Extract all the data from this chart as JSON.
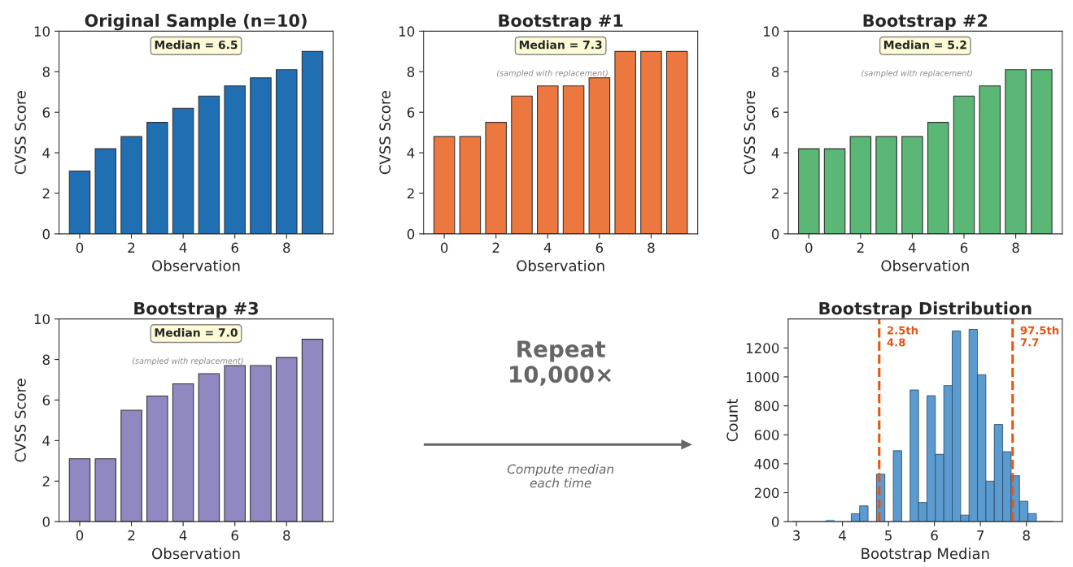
{
  "chart_data": [
    {
      "type": "bar",
      "title": "Original Sample (n=10)",
      "xlabel": "Observation",
      "ylabel": "CVSS Score",
      "x": [
        0,
        1,
        2,
        3,
        4,
        5,
        6,
        7,
        8,
        9
      ],
      "values": [
        3.1,
        4.2,
        4.8,
        5.5,
        6.2,
        6.8,
        7.3,
        7.7,
        8.1,
        9.0
      ],
      "color": "#1f6fb2",
      "xlim": [
        -0.8,
        9.8
      ],
      "xticks": [
        0,
        2,
        4,
        6,
        8
      ],
      "ylim": [
        0,
        10
      ],
      "yticks": [
        0,
        2,
        4,
        6,
        8,
        10
      ],
      "annotations": [
        "Median = 6.5"
      ]
    },
    {
      "type": "bar",
      "title": "Bootstrap #1",
      "xlabel": "Observation",
      "ylabel": "CVSS Score",
      "x": [
        0,
        1,
        2,
        3,
        4,
        5,
        6,
        7,
        8,
        9
      ],
      "values": [
        4.8,
        4.8,
        5.5,
        6.8,
        7.3,
        7.3,
        7.7,
        9.0,
        9.0,
        9.0
      ],
      "color": "#ed783f",
      "xlim": [
        -0.8,
        9.8
      ],
      "xticks": [
        0,
        2,
        4,
        6,
        8
      ],
      "ylim": [
        0,
        10
      ],
      "yticks": [
        0,
        2,
        4,
        6,
        8,
        10
      ],
      "annotations": [
        "Median = 7.3",
        "(sampled with replacement)"
      ]
    },
    {
      "type": "bar",
      "title": "Bootstrap #2",
      "xlabel": "Observation",
      "ylabel": "CVSS Score",
      "x": [
        0,
        1,
        2,
        3,
        4,
        5,
        6,
        7,
        8,
        9
      ],
      "values": [
        4.2,
        4.2,
        4.8,
        4.8,
        4.8,
        5.5,
        6.8,
        7.3,
        8.1,
        8.1
      ],
      "color": "#5bb776",
      "xlim": [
        -0.8,
        9.8
      ],
      "xticks": [
        0,
        2,
        4,
        6,
        8
      ],
      "ylim": [
        0,
        10
      ],
      "yticks": [
        0,
        2,
        4,
        6,
        8,
        10
      ],
      "annotations": [
        "Median = 5.2",
        "(sampled with replacement)"
      ]
    },
    {
      "type": "bar",
      "title": "Bootstrap #3",
      "xlabel": "Observation",
      "ylabel": "CVSS Score",
      "x": [
        0,
        1,
        2,
        3,
        4,
        5,
        6,
        7,
        8,
        9
      ],
      "values": [
        3.1,
        3.1,
        5.5,
        6.2,
        6.8,
        7.3,
        7.7,
        7.7,
        8.1,
        9.0
      ],
      "color": "#9089c1",
      "xlim": [
        -0.8,
        9.8
      ],
      "xticks": [
        0,
        2,
        4,
        6,
        8
      ],
      "ylim": [
        0,
        10
      ],
      "yticks": [
        0,
        2,
        4,
        6,
        8,
        10
      ],
      "annotations": [
        "Median = 7.0",
        "(sampled with replacement)"
      ]
    },
    {
      "type": "other",
      "annotations": [
        "Repeat\n10,000×",
        "Compute median\neach time"
      ]
    },
    {
      "type": "histogram",
      "title": "Bootstrap Distribution",
      "xlabel": "Bootstrap Median",
      "ylabel": "Count",
      "color": "#5b9bd0",
      "bins": [
        2.91,
        3.093,
        3.276,
        3.459,
        3.642,
        3.825,
        4.008,
        4.191,
        4.374,
        4.557,
        4.74,
        4.923,
        5.106,
        5.289,
        5.472,
        5.655,
        5.838,
        6.021,
        6.204,
        6.387,
        6.57,
        6.753,
        6.936,
        7.119,
        7.302,
        7.485,
        7.668,
        7.851,
        8.034,
        8.217,
        8.4,
        8.583
      ],
      "values": [
        2,
        0,
        0,
        0,
        10,
        0,
        0,
        55,
        109,
        0,
        328,
        0,
        490,
        0,
        910,
        132,
        870,
        465,
        940,
        1318,
        45,
        1328,
        1015,
        280,
        671,
        483,
        317,
        141,
        56,
        2,
        2
      ],
      "xlim": [
        2.82,
        8.78
      ],
      "xticks": [
        3,
        4,
        5,
        6,
        7,
        8
      ],
      "ylim": [
        0,
        1400
      ],
      "yticks": [
        0,
        200,
        400,
        600,
        800,
        1000,
        1200
      ],
      "ref_lines": [
        {
          "axis": "x",
          "value": 4.8,
          "label": "2.5th\n4.8",
          "color": "#e8540f",
          "line_style": "dashed"
        },
        {
          "axis": "x",
          "value": 7.7,
          "label": "97.5th\n7.7",
          "color": "#e8540f",
          "line_style": "dashed"
        }
      ]
    }
  ]
}
